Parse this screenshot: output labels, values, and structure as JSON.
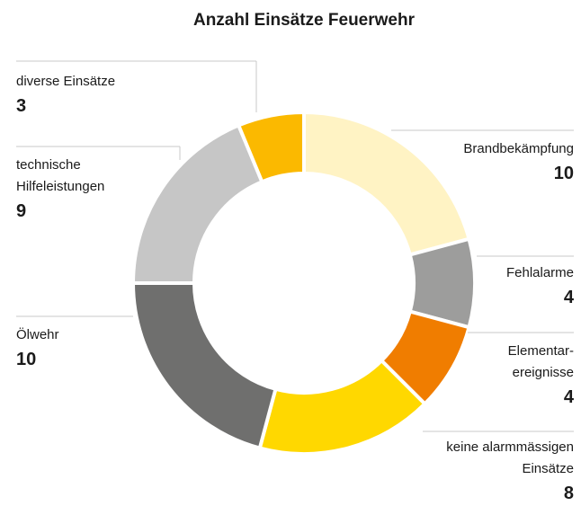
{
  "chart_data": {
    "type": "donut",
    "title": "Anzahl Einsätze Feuerwehr",
    "categories": [
      "Brandbekämpfung",
      "Fehlalarme",
      "Elementar-\nereignisse",
      "keine alarmmässigen\nEinsätze",
      "Ölwehr",
      "technische\nHilfeleistungen",
      "diverse Einsätze"
    ],
    "values": [
      10,
      4,
      4,
      8,
      10,
      9,
      3
    ],
    "colors": [
      "#fff3c4",
      "#9d9d9c",
      "#f07d00",
      "#ffd800",
      "#6f6f6e",
      "#c6c6c6",
      "#fbb900"
    ]
  }
}
